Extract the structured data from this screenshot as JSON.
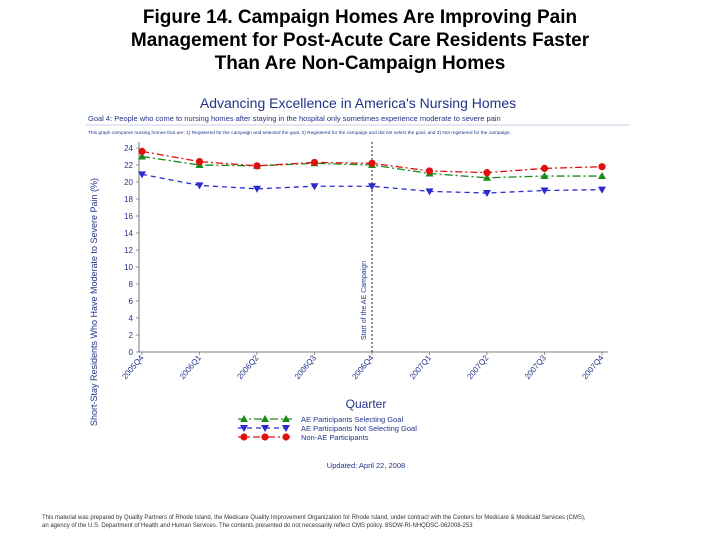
{
  "figure_title": {
    "line1": "Figure 14. Campaign Homes Are Improving Pain",
    "line2": "Management for Post-Acute Care Residents Faster",
    "line3": "Than Are Non-Campaign Homes"
  },
  "chart_data": {
    "type": "line",
    "title": "Advancing Excellence in America's Nursing Homes",
    "subtitle": "Goal 4: People who come to nursing homes after staying in the hospital only sometimes experience moderate to severe pain",
    "description": "This graph compares nursing homes that are: 1) Registered for the campaign and selected the goal, 2) Registered for the campaign and did not select the goal, and 3) Not registered for the campaign.",
    "xlabel": "Quarter",
    "ylabel": "Short-Stay Residents Who Have Moderate to Severe Pain (%)",
    "categories": [
      "2005Q4",
      "2006Q1",
      "2006Q2",
      "2006Q3",
      "2006Q4",
      "2007Q1",
      "2007Q2",
      "2007Q3",
      "2007Q4"
    ],
    "y_ticks": [
      "0",
      "2",
      "4",
      "6",
      "8",
      "10",
      "12",
      "14",
      "16",
      "18",
      "20",
      "22",
      "24"
    ],
    "ylim": [
      0,
      24
    ],
    "grid": false,
    "legend_position": "bottom",
    "series": [
      {
        "name": "AE Participants Selecting Goal",
        "color": "#1a8a1a",
        "marker": "triangle-up",
        "dash": "8,3,2,3",
        "values": [
          23.0,
          22.0,
          21.9,
          22.2,
          22.0,
          21.0,
          20.5,
          20.7,
          20.7
        ]
      },
      {
        "name": "AE Participants Not Selecting Goal",
        "color": "#2a2ad0",
        "marker": "triangle-down",
        "dash": "5,4",
        "values": [
          20.9,
          19.6,
          19.2,
          19.5,
          19.5,
          18.9,
          18.7,
          19.0,
          19.1
        ]
      },
      {
        "name": "Non-AE Participants",
        "color": "#e01010",
        "marker": "circle",
        "dash": "7,3,2,3",
        "values": [
          23.6,
          22.4,
          21.9,
          22.3,
          22.2,
          21.3,
          21.1,
          21.6,
          21.8
        ]
      }
    ],
    "annotation": {
      "text": "Start of the AE Campaign",
      "category": "2006Q4"
    },
    "updated": "Updated: April 22, 2008"
  },
  "footer": {
    "line1": "This material was prepared by Quality Partners of Rhode Island, the Medicare Quality Improvement Organization for Rhode Island, under contract with the Centers for Medicare & Medicaid Services (CMS),",
    "line2": "an agency of the U.S. Department of Health and Human Services. The contents presented do not necessarily reflect CMS policy. 8SOW-RI-NHQDSC-062008-253"
  },
  "colors": {
    "green": "#1a8a1a",
    "blue": "#2a2ad0",
    "red": "#e01010",
    "title_blue": "#223388"
  }
}
